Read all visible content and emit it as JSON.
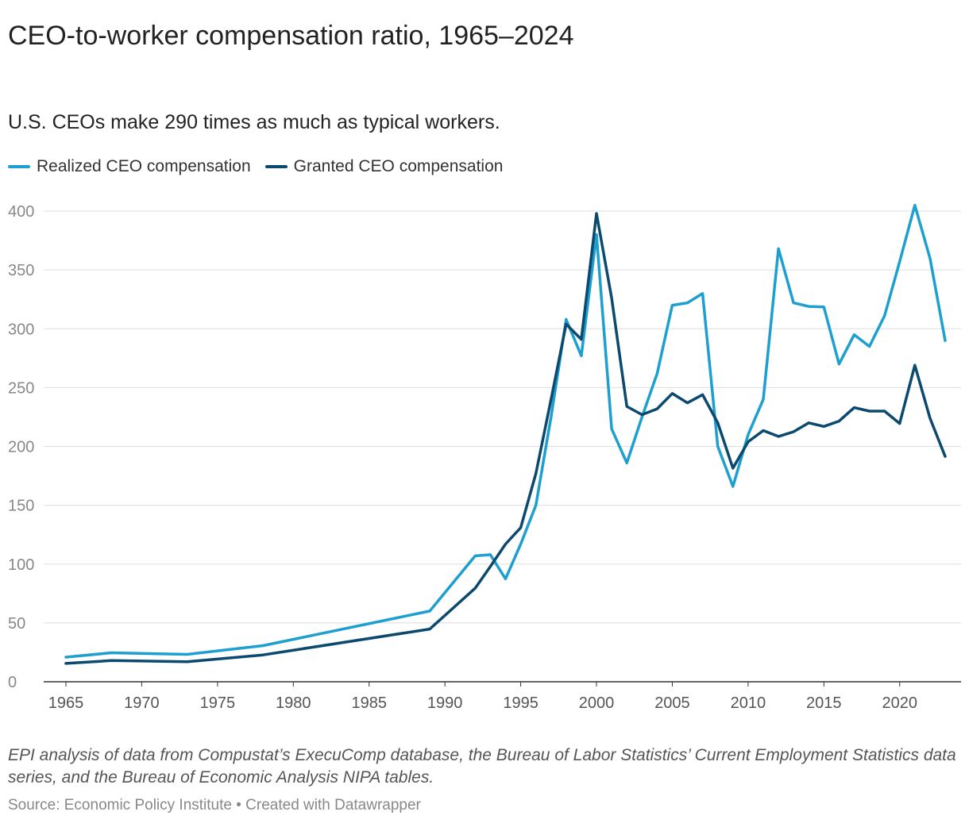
{
  "title": "CEO-to-worker compensation ratio, 1965–2024",
  "subtitle": "U.S. CEOs make 290 times as much as typical workers.",
  "notes": "EPI analysis of data from Compustat’s ExecuComp database, the Bureau of Labor Statistics’ Current Employment Statistics data series, and the Bureau of Economic Analysis NIPA tables.",
  "source": "Source: Economic Policy Institute • Created with Datawrapper",
  "chart_data": {
    "type": "line",
    "x": [
      1965,
      1968,
      1973,
      1978,
      1989,
      1992,
      1993,
      1994,
      1995,
      1996,
      1997,
      1998,
      1999,
      2000,
      2001,
      2002,
      2003,
      2004,
      2005,
      2006,
      2007,
      2008,
      2009,
      2010,
      2011,
      2012,
      2013,
      2014,
      2015,
      2016,
      2017,
      2018,
      2019,
      2020,
      2021,
      2022,
      2023
    ],
    "series": [
      {
        "name": "Realized CEO compensation",
        "color": "#1d9fcf",
        "values": [
          20.9,
          24.6,
          23.3,
          30.7,
          60.1,
          107.0,
          108.0,
          87.5,
          117.0,
          150.0,
          225.0,
          308.0,
          277.0,
          380.0,
          215.0,
          186.0,
          225.0,
          262.0,
          320.0,
          322.0,
          330.0,
          200.0,
          166.0,
          210.0,
          240.0,
          368.0,
          322.0,
          319.0,
          318.5,
          270.0,
          295.0,
          285.0,
          311.0,
          357.0,
          405.0,
          360.0,
          290.0
        ]
      },
      {
        "name": "Granted CEO compensation",
        "color": "#0b4a6e",
        "values": [
          15.6,
          18.0,
          17.0,
          22.8,
          44.8,
          79.5,
          98.0,
          117.0,
          131.0,
          177.0,
          240.0,
          304.0,
          291.0,
          398.0,
          326.0,
          234.0,
          227.0,
          232.0,
          245.0,
          237.0,
          244.0,
          220.0,
          181.5,
          204.0,
          213.5,
          208.5,
          212.5,
          220.0,
          217.0,
          221.5,
          233.0,
          230.0,
          230.0,
          219.5,
          269.0,
          224.0,
          191.5
        ]
      }
    ],
    "yticks": [
      0,
      50,
      100,
      150,
      200,
      250,
      300,
      350,
      400
    ],
    "xticks": [
      1965,
      1970,
      1975,
      1980,
      1985,
      1990,
      1995,
      2000,
      2005,
      2010,
      2015,
      2020
    ],
    "ylim": [
      0,
      400
    ],
    "xlim": [
      1965,
      2023
    ],
    "xlabel": "",
    "ylabel": "",
    "grid": true,
    "legend": "top-left"
  }
}
